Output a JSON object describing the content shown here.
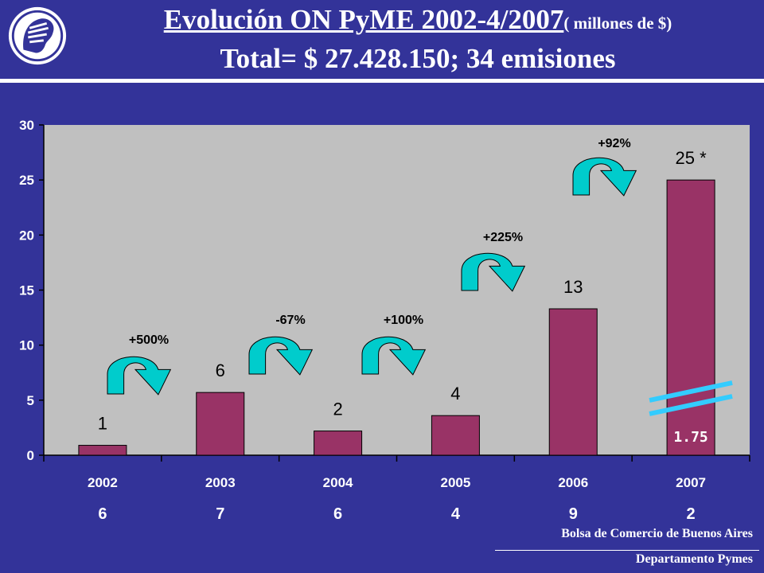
{
  "header": {
    "title_main": "Evolución ON PyME 2002-4/2007",
    "title_unit": "( millones de $)",
    "subtitle": "Total= $ 27.428.150; 34 emisiones"
  },
  "footer": {
    "org": "Bolsa de Comercio de Buenos Aires",
    "dept": "Departamento Pymes"
  },
  "colors": {
    "background": "#333399",
    "bar": "#993366",
    "plot_area": "#c0c0c0",
    "arrow": "#00cccc",
    "break_mark": "#33ccff"
  },
  "chart_data": {
    "type": "bar",
    "categories": [
      "2002",
      "2003",
      "2004",
      "2005",
      "2006",
      "2007"
    ],
    "values": [
      0.9,
      5.7,
      2.2,
      3.6,
      13.3,
      25
    ],
    "data_labels": [
      "1",
      "6",
      "2",
      "4",
      "13",
      "25 *"
    ],
    "emissions_row": [
      "6",
      "7",
      "6",
      "4",
      "9",
      "2"
    ],
    "growth_annotations": [
      {
        "between": [
          "2002",
          "2003"
        ],
        "label": "+500%"
      },
      {
        "between": [
          "2003",
          "2004"
        ],
        "label": "-67%"
      },
      {
        "between": [
          "2004",
          "2005"
        ],
        "label": "+100%"
      },
      {
        "between": [
          "2005",
          "2006"
        ],
        "label": "+225%"
      },
      {
        "between": [
          "2006",
          "2007"
        ],
        "label": "+92%"
      }
    ],
    "broken_bar": {
      "category": "2007",
      "label": "1.75"
    },
    "ylim": [
      0,
      30
    ],
    "yticks": [
      "0",
      "5",
      "10",
      "15",
      "20",
      "25",
      "30"
    ],
    "grid": false
  }
}
